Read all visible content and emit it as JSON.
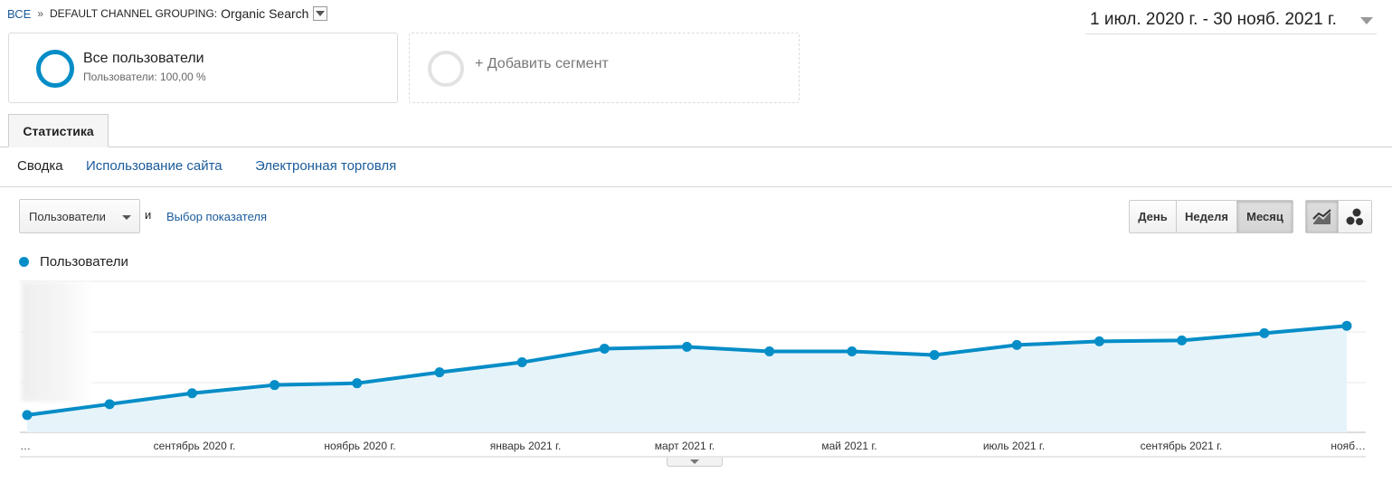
{
  "breadcrumb": {
    "root": "ВСЕ",
    "separator": "»",
    "dimension": "DEFAULT CHANNEL GROUPING:",
    "value": "Organic Search"
  },
  "date_range": "1 июл. 2020 г. - 30 нояб. 2021 г.",
  "segments": {
    "active": {
      "title": "Все пользователи",
      "subtitle": "Пользователи: 100,00 %"
    },
    "add": {
      "label": "+ Добавить сегмент"
    }
  },
  "tabs": {
    "statistics": "Статистика"
  },
  "subnav": {
    "summary": "Сводка",
    "site_usage": "Использование сайта",
    "ecommerce": "Электронная торговля"
  },
  "controls": {
    "metric": "Пользователи",
    "and": "и",
    "choose_metric": "Выбор показателя",
    "granularity": {
      "day": "День",
      "week": "Неделя",
      "month": "Месяц",
      "selected": "month"
    }
  },
  "colors": {
    "series": "#058dc7",
    "fill": "#e6f4fa",
    "link": "#1a5b9b"
  },
  "chart_data": {
    "type": "area",
    "legend": "Пользователи",
    "x_tick_labels": [
      "…",
      "сентябрь 2020 г.",
      "ноябрь 2020 г.",
      "январь 2021 г.",
      "март 2021 г.",
      "май 2021 г.",
      "июль 2021 г.",
      "сентябрь 2021 г.",
      "нояб…"
    ],
    "y_axis_labels_hidden": true,
    "series": [
      {
        "name": "Пользователи",
        "categories": [
          "июл. 2020",
          "авг. 2020",
          "сент. 2020",
          "окт. 2020",
          "нояб. 2020",
          "дек. 2020",
          "янв. 2021",
          "февр. 2021",
          "март 2021",
          "апр. 2021",
          "май 2021",
          "июнь 2021",
          "июль 2021",
          "авг. 2021",
          "сент. 2021",
          "окт. 2021",
          "нояб. 2021"
        ],
        "values": [
          19,
          31,
          43,
          52,
          54,
          66,
          77,
          92,
          94,
          89,
          89,
          85,
          96,
          100,
          101,
          109,
          117
        ]
      }
    ],
    "ylim": [
      0,
      166
    ],
    "grid": true
  }
}
